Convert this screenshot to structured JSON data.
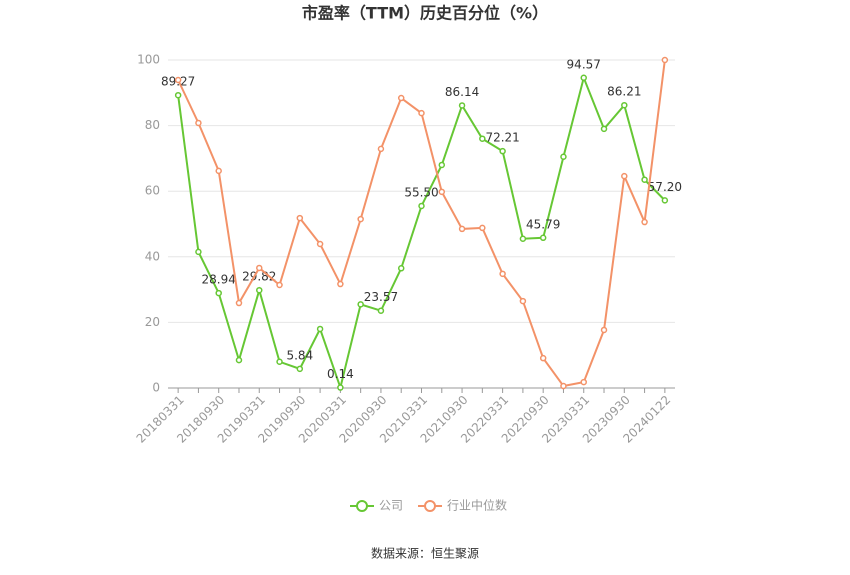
{
  "chart_data": {
    "type": "line",
    "title": "市盈率（TTM）历史百分位（%）",
    "source": "数据来源：恒生聚源",
    "categories": [
      "20180331",
      null,
      "20180930",
      null,
      "20190331",
      null,
      "20190930",
      null,
      "20200331",
      null,
      "20200930",
      null,
      "20210331",
      null,
      "20210930",
      null,
      "20220331",
      null,
      "20220930",
      null,
      "20230331",
      null,
      "20230930",
      null,
      "20240122"
    ],
    "series": [
      {
        "name": "公司",
        "color": "#66c734",
        "values": [
          89.27,
          41.5,
          28.94,
          8.5,
          29.82,
          8,
          5.84,
          18,
          0.14,
          25.5,
          23.57,
          36.5,
          55.5,
          68,
          86.14,
          76,
          72.21,
          45.5,
          45.79,
          70.5,
          94.57,
          79,
          86.21,
          63.5,
          57.2
        ],
        "value_labels": [
          "89.27",
          null,
          "28.94",
          null,
          "29.82",
          null,
          "5.84",
          null,
          "0.14",
          null,
          "23.57",
          null,
          "55.50",
          null,
          "86.14",
          null,
          "72.21",
          null,
          "45.79",
          null,
          "94.57",
          null,
          "86.21",
          null,
          "57.20"
        ]
      },
      {
        "name": "行业中位数",
        "color": "#f39268",
        "values": [
          93.9,
          80.8,
          66.2,
          25.9,
          36.6,
          31.4,
          51.8,
          43.9,
          31.7,
          51.5,
          72.9,
          88.4,
          83.8,
          59.8,
          48.5,
          48.8,
          34.8,
          26.5,
          9.1,
          0.6,
          1.8,
          17.7,
          64.6,
          50.6,
          100
        ]
      }
    ],
    "ylim": [
      0,
      100
    ],
    "yticks": [
      0,
      20,
      40,
      60,
      80,
      100
    ],
    "grid": true,
    "legend": "bottom"
  }
}
